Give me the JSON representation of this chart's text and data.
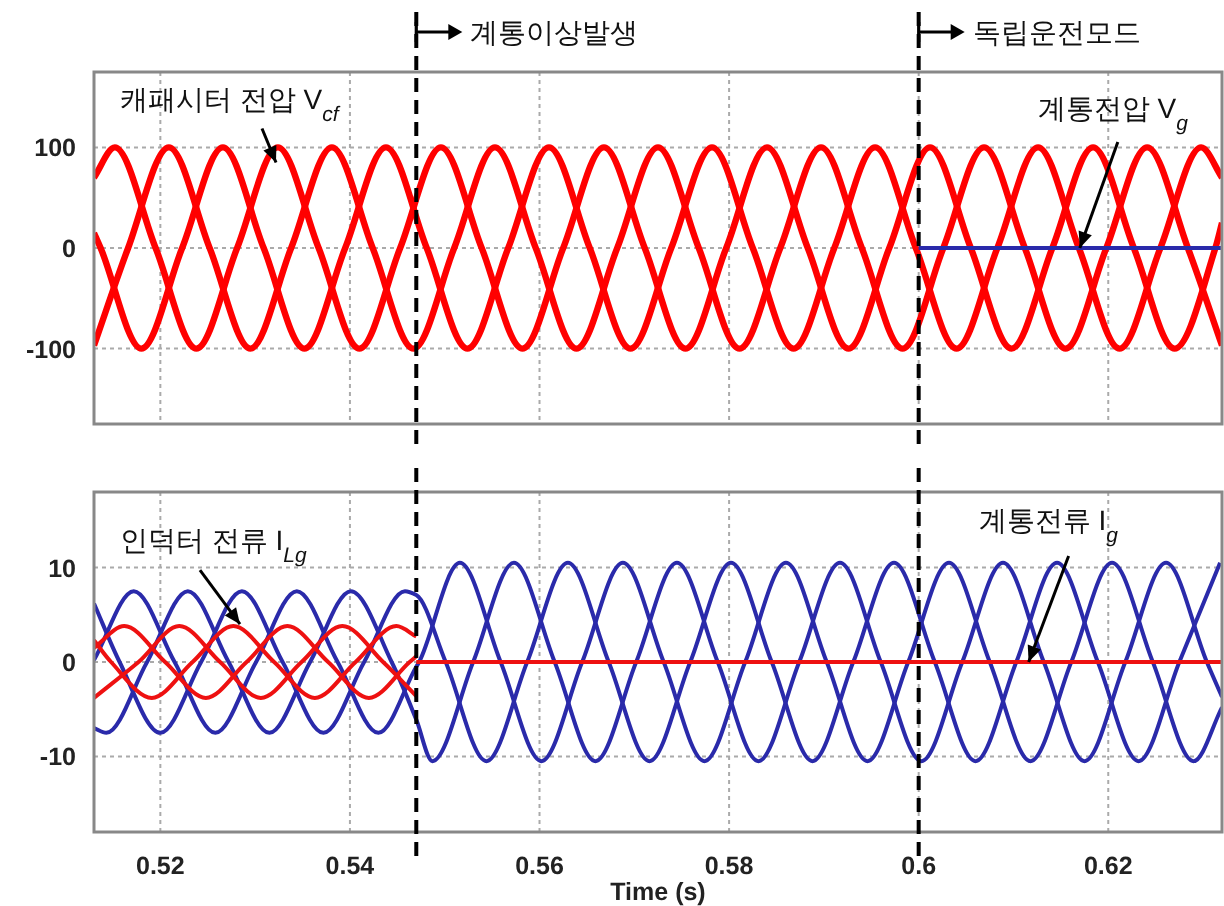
{
  "chart_data": [
    {
      "type": "line",
      "xlim": [
        0.513,
        0.632
      ],
      "xticks": [
        0.52,
        0.54,
        0.56,
        0.58,
        0.6,
        0.62
      ],
      "ylim": [
        -175,
        175
      ],
      "yticks": [
        -100,
        0,
        100
      ],
      "grid": true,
      "tick_labels": "y",
      "ref_lines": [
        {
          "axis": "x",
          "value": 0.547,
          "label": "계통이상발생",
          "line_style": "dashed",
          "color": "#000000"
        },
        {
          "axis": "x",
          "value": 0.6,
          "label": "독립운전모드",
          "line_style": "dashed",
          "color": "#000000"
        }
      ],
      "annotations": [
        {
          "text": "캐패시터 전압 V$_{cf}$",
          "x": 0.5322,
          "y": 85
        },
        {
          "text": "계통전압 V$_{g}$",
          "x": 0.617,
          "y": 0
        }
      ],
      "series": [
        {
          "color": "#ff0000",
          "x": [
            0.513,
            0.5152,
            0.5195,
            0.5238,
            0.5281,
            0.5324,
            0.5367,
            0.541,
            0.5453,
            0.5496,
            0.5539,
            0.5582,
            0.5625,
            0.5668,
            0.5711,
            0.5754,
            0.5797,
            0.584,
            0.5883,
            0.5926,
            0.5969,
            0.6012,
            0.6055,
            0.6098,
            0.6141,
            0.6184,
            0.6227,
            0.627,
            0.6313,
            0.632
          ],
          "values": [
            70,
            100,
            0,
            -100,
            0,
            100,
            0,
            -100,
            0,
            100,
            0,
            -100,
            0,
            100,
            0,
            -100,
            0,
            100,
            0,
            -100,
            0,
            100,
            0,
            -100,
            0,
            100,
            0,
            -100,
            0,
            25
          ]
        },
        {
          "color": "#ff0000",
          "x": [
            0.513,
            0.5166,
            0.5209,
            0.5252,
            0.5295,
            0.5338,
            0.5381,
            0.5424,
            0.5467,
            0.551,
            0.5553,
            0.5596,
            0.5639,
            0.5682,
            0.5725,
            0.5768,
            0.5811,
            0.5854,
            0.5897,
            0.594,
            0.5983,
            0.6026,
            0.6069,
            0.6112,
            0.6155,
            0.6198,
            0.6241,
            0.6284,
            0.632
          ],
          "values": [
            -97,
            0,
            100,
            0,
            -100,
            0,
            100,
            0,
            -100,
            0,
            100,
            0,
            -100,
            0,
            100,
            0,
            -100,
            0,
            100,
            0,
            -100,
            0,
            100,
            0,
            -100,
            0,
            100,
            0,
            -97
          ]
        },
        {
          "color": "#ff0000",
          "x": [
            0.513,
            0.5137,
            0.518,
            0.5223,
            0.5266,
            0.5309,
            0.5352,
            0.5395,
            0.5438,
            0.5481,
            0.5524,
            0.5567,
            0.561,
            0.5653,
            0.5696,
            0.5739,
            0.5782,
            0.5825,
            0.5868,
            0.5911,
            0.5954,
            0.5997,
            0.604,
            0.6083,
            0.6126,
            0.6169,
            0.6212,
            0.6255,
            0.6298,
            0.632
          ],
          "values": [
            15,
            0,
            -100,
            0,
            100,
            0,
            -100,
            0,
            100,
            0,
            -100,
            0,
            100,
            0,
            -100,
            0,
            100,
            0,
            -100,
            0,
            100,
            0,
            -100,
            0,
            100,
            0,
            -100,
            0,
            100,
            70
          ]
        },
        {
          "color": "#2a2aaa",
          "x": [
            0.6,
            0.632
          ],
          "values": [
            0,
            0
          ]
        }
      ]
    },
    {
      "type": "line",
      "xlim": [
        0.513,
        0.632
      ],
      "xticks": [
        0.52,
        0.54,
        0.56,
        0.58,
        0.6,
        0.62
      ],
      "ylim": [
        -18,
        18
      ],
      "yticks": [
        -10,
        0,
        10
      ],
      "grid": true,
      "xlabel": "Time (s)",
      "ref_lines": [
        {
          "axis": "x",
          "value": 0.547,
          "line_style": "dashed",
          "color": "#000000"
        },
        {
          "axis": "x",
          "value": 0.6,
          "line_style": "dashed",
          "color": "#000000"
        }
      ],
      "annotations": [
        {
          "text": "인덕터 전류 I$_{Lg}$",
          "x": 0.5284,
          "y": 4
        },
        {
          "text": "계통전류 I$_{g}$",
          "x": 0.6116,
          "y": 0
        }
      ],
      "series": [
        {
          "color": "#2a2aaa",
          "x": [
            0.513,
            0.5172,
            0.5215,
            0.5258,
            0.5301,
            0.5344,
            0.5387,
            0.543,
            0.547,
            0.5473,
            0.5516,
            0.5559,
            0.5602,
            0.5645,
            0.5688,
            0.5731,
            0.5774,
            0.5817,
            0.586,
            0.5903,
            0.5946,
            0.5989,
            0.6032,
            0.6075,
            0.6118,
            0.6161,
            0.6204,
            0.6247,
            0.629,
            0.632
          ],
          "values": [
            0.2,
            7.5,
            0,
            -7.5,
            0,
            7.5,
            0,
            -7.5,
            -0.5,
            0,
            10.5,
            0,
            -10.5,
            0,
            10.5,
            0,
            -10.5,
            0,
            10.5,
            0,
            -10.5,
            0,
            10.5,
            0,
            -10.5,
            0,
            10.5,
            0,
            -10.5,
            -4.8
          ]
        },
        {
          "color": "#2a2aaa",
          "x": [
            0.513,
            0.5143,
            0.5186,
            0.5229,
            0.5272,
            0.5315,
            0.5358,
            0.5401,
            0.5444,
            0.547,
            0.5487,
            0.553,
            0.5573,
            0.5616,
            0.5659,
            0.5702,
            0.5745,
            0.5788,
            0.5831,
            0.5874,
            0.5917,
            0.596,
            0.6003,
            0.6046,
            0.6089,
            0.6132,
            0.6175,
            0.6218,
            0.6261,
            0.6304,
            0.632
          ],
          "values": [
            -7.0,
            -7.5,
            0,
            7.5,
            0,
            -7.5,
            0,
            7.5,
            0,
            -6.1,
            -10.5,
            0,
            10.5,
            0,
            -10.5,
            0,
            10.5,
            0,
            -10.5,
            0,
            10.5,
            0,
            -10.5,
            0,
            10.5,
            0,
            -10.5,
            0,
            10.5,
            0,
            -3.7
          ]
        },
        {
          "color": "#2a2aaa",
          "x": [
            0.513,
            0.5157,
            0.52,
            0.5243,
            0.5286,
            0.5329,
            0.5372,
            0.5415,
            0.5458,
            0.547,
            0.5501,
            0.5544,
            0.5587,
            0.563,
            0.5673,
            0.5716,
            0.5759,
            0.5802,
            0.5845,
            0.5888,
            0.5931,
            0.5974,
            0.6017,
            0.606,
            0.6103,
            0.6146,
            0.6189,
            0.6232,
            0.6275,
            0.6318
          ],
          "values": [
            6.2,
            0,
            -7.5,
            0,
            7.5,
            0,
            -7.5,
            0,
            7.5,
            7.1,
            0,
            -10.5,
            0,
            10.5,
            0,
            -10.5,
            0,
            10.5,
            0,
            -10.5,
            0,
            10.5,
            0,
            -10.5,
            0,
            10.5,
            0,
            -10.5,
            0,
            10.5
          ]
        },
        {
          "color": "#ee1111",
          "x": [
            0.513,
            0.5148,
            0.5191,
            0.5234,
            0.5277,
            0.532,
            0.5363,
            0.5406,
            0.5449,
            0.547
          ],
          "values": [
            2.3,
            0,
            -3.8,
            0,
            3.8,
            0,
            -3.8,
            0,
            3.8,
            2.7
          ]
        },
        {
          "color": "#ee1111",
          "x": [
            0.513,
            0.5177,
            0.522,
            0.5263,
            0.5306,
            0.5349,
            0.5392,
            0.5435,
            0.547
          ],
          "values": [
            -3.8,
            0,
            3.8,
            0,
            -3.8,
            0,
            3.8,
            0,
            -3.6
          ]
        },
        {
          "color": "#ee1111",
          "x": [
            0.513,
            0.5162,
            0.5205,
            0.5248,
            0.5291,
            0.5334,
            0.5377,
            0.542,
            0.5463,
            0.547
          ],
          "values": [
            1.5,
            3.8,
            0,
            -3.8,
            0,
            3.8,
            0,
            -3.8,
            0,
            0.6
          ]
        },
        {
          "color": "#ee1111",
          "x": [
            0.547,
            0.632
          ],
          "values": [
            0,
            0
          ]
        }
      ]
    }
  ]
}
